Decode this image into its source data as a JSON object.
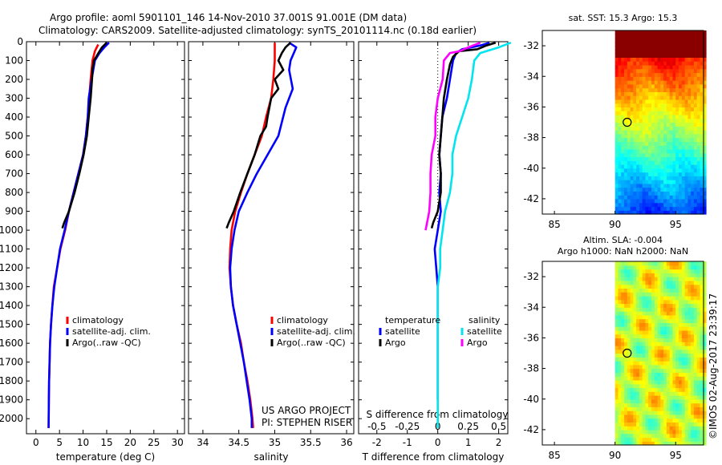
{
  "title": {
    "line1": "Argo profile: aoml 5901101_146 14-Nov-2010 37.001S 91.001E (DM data)",
    "line2": "Climatology: CARS2009. Satellite-adjusted climatology: synTS_20101114.nc (0.18d earlier)"
  },
  "credits": {
    "project": "US ARGO PROJECT",
    "pi": "PI: STEPHEN RISER",
    "stamp": "©IMOS 02-Aug-2017 23:39:17"
  },
  "colors": {
    "climatology": "#ff0000",
    "satellite": "#0000ff",
    "argo": "#000000",
    "sal_satellite": "#00e5ee",
    "sal_argo": "#ff00ff"
  },
  "chart_data": [
    {
      "type": "line",
      "id": "temperature",
      "xlabel": "temperature (deg C)",
      "ylabel": "",
      "xlim": [
        -2,
        31.5
      ],
      "ylim": [
        2080,
        0
      ],
      "xticks": [
        "0",
        "5",
        "10",
        "15",
        "20",
        "25",
        "30"
      ],
      "yticks": [
        "0",
        "100",
        "200",
        "300",
        "400",
        "500",
        "600",
        "700",
        "800",
        "900",
        "1000",
        "1100",
        "1200",
        "1300",
        "1400",
        "1500",
        "1600",
        "1700",
        "1800",
        "1900",
        "2000"
      ],
      "legend": [
        "climatology",
        "satellite-adj. clim.",
        "Argo(..raw -QC)"
      ],
      "legend_position": "lower-center",
      "series": [
        {
          "name": "climatology",
          "color": "#ff0000",
          "points": [
            [
              13.2,
              15
            ],
            [
              12.5,
              50
            ],
            [
              12.0,
              100
            ],
            [
              11.6,
              200
            ],
            [
              11.3,
              300
            ],
            [
              11.0,
              400
            ],
            [
              10.6,
              500
            ],
            [
              10.0,
              600
            ],
            [
              9.0,
              700
            ],
            [
              8.0,
              800
            ],
            [
              7.0,
              900
            ],
            [
              6.2,
              1000
            ],
            [
              5.2,
              1100
            ],
            [
              4.5,
              1200
            ],
            [
              3.8,
              1300
            ],
            [
              3.5,
              1400
            ],
            [
              3.2,
              1500
            ],
            [
              3.0,
              1600
            ],
            [
              2.9,
              1700
            ],
            [
              2.8,
              1800
            ],
            [
              2.75,
              1900
            ],
            [
              2.7,
              2050
            ]
          ]
        },
        {
          "name": "satellite-adj. clim.",
          "color": "#0000ff",
          "points": [
            [
              15.5,
              5
            ],
            [
              14.5,
              30
            ],
            [
              13.5,
              60
            ],
            [
              12.5,
              100
            ],
            [
              11.8,
              200
            ],
            [
              11.2,
              300
            ],
            [
              11.0,
              400
            ],
            [
              10.6,
              500
            ],
            [
              10.0,
              600
            ],
            [
              9.0,
              700
            ],
            [
              8.0,
              800
            ],
            [
              7.0,
              900
            ],
            [
              6.1,
              1000
            ],
            [
              5.1,
              1100
            ],
            [
              4.5,
              1200
            ],
            [
              3.9,
              1300
            ],
            [
              3.5,
              1400
            ],
            [
              3.2,
              1500
            ],
            [
              3.0,
              1600
            ],
            [
              2.9,
              1700
            ],
            [
              2.8,
              1800
            ],
            [
              2.75,
              1900
            ],
            [
              2.7,
              2050
            ]
          ]
        },
        {
          "name": "Argo(..raw -QC)",
          "color": "#000000",
          "points": [
            [
              15.0,
              5
            ],
            [
              14.0,
              30
            ],
            [
              13.5,
              50
            ],
            [
              12.8,
              80
            ],
            [
              12.3,
              100
            ],
            [
              12.0,
              150
            ],
            [
              11.9,
              200
            ],
            [
              11.6,
              300
            ],
            [
              11.2,
              400
            ],
            [
              10.8,
              500
            ],
            [
              10.1,
              600
            ],
            [
              9.2,
              700
            ],
            [
              8.2,
              800
            ],
            [
              7.0,
              900
            ],
            [
              6.0,
              960
            ],
            [
              5.6,
              990
            ]
          ]
        }
      ]
    },
    {
      "type": "line",
      "id": "salinity",
      "xlabel": "salinity",
      "ylabel": "",
      "xlim": [
        33.8,
        36.1
      ],
      "ylim": [
        2080,
        0
      ],
      "xticks": [
        "34",
        "34.5",
        "35",
        "35.5",
        "36"
      ],
      "legend": [
        "climatology",
        "satellite-adj. clim.",
        "Argo(..raw -QC)"
      ],
      "legend_position": "lower-center",
      "series": [
        {
          "name": "climatology",
          "color": "#ff0000",
          "points": [
            [
              35.0,
              5
            ],
            [
              35.0,
              100
            ],
            [
              34.98,
              200
            ],
            [
              34.95,
              300
            ],
            [
              34.88,
              400
            ],
            [
              34.82,
              500
            ],
            [
              34.72,
              600
            ],
            [
              34.62,
              700
            ],
            [
              34.53,
              800
            ],
            [
              34.45,
              900
            ],
            [
              34.4,
              1000
            ],
            [
              34.38,
              1100
            ],
            [
              34.37,
              1200
            ],
            [
              34.39,
              1300
            ],
            [
              34.42,
              1400
            ],
            [
              34.47,
              1500
            ],
            [
              34.53,
              1600
            ],
            [
              34.57,
              1700
            ],
            [
              34.62,
              1800
            ],
            [
              34.66,
              1900
            ],
            [
              34.69,
              2000
            ],
            [
              34.7,
              2050
            ]
          ]
        },
        {
          "name": "satellite-adj. clim.",
          "color": "#0000ff",
          "points": [
            [
              35.2,
              5
            ],
            [
              35.3,
              30
            ],
            [
              35.22,
              100
            ],
            [
              35.2,
              150
            ],
            [
              35.25,
              250
            ],
            [
              35.15,
              350
            ],
            [
              35.05,
              500
            ],
            [
              34.9,
              600
            ],
            [
              34.75,
              700
            ],
            [
              34.62,
              800
            ],
            [
              34.5,
              900
            ],
            [
              34.44,
              1000
            ],
            [
              34.4,
              1100
            ],
            [
              34.38,
              1200
            ],
            [
              34.39,
              1300
            ],
            [
              34.42,
              1400
            ],
            [
              34.47,
              1500
            ],
            [
              34.52,
              1600
            ],
            [
              34.57,
              1700
            ],
            [
              34.61,
              1800
            ],
            [
              34.65,
              1900
            ],
            [
              34.68,
              2000
            ],
            [
              34.68,
              2050
            ]
          ]
        },
        {
          "name": "Argo(..raw -QC)",
          "color": "#000000",
          "points": [
            [
              35.22,
              5
            ],
            [
              35.15,
              30
            ],
            [
              35.1,
              60
            ],
            [
              35.05,
              100
            ],
            [
              35.12,
              150
            ],
            [
              35.0,
              200
            ],
            [
              35.05,
              250
            ],
            [
              34.95,
              300
            ],
            [
              34.9,
              400
            ],
            [
              34.88,
              450
            ],
            [
              34.8,
              500
            ],
            [
              34.72,
              600
            ],
            [
              34.62,
              700
            ],
            [
              34.52,
              800
            ],
            [
              34.43,
              900
            ],
            [
              34.36,
              960
            ],
            [
              34.33,
              990
            ]
          ]
        }
      ]
    },
    {
      "type": "line",
      "id": "difference",
      "xlabel": "T difference from climatology",
      "xlabel2": "S difference from climatology",
      "xlim": [
        -2.6,
        2.3
      ],
      "ylim": [
        2080,
        0
      ],
      "xticks": [
        "-2",
        "-1",
        "0",
        "1",
        "2"
      ],
      "xticks2": [
        "-0.5",
        "-0.25",
        "0",
        "0.25",
        "0.5"
      ],
      "legend_titles": [
        "temperature",
        "salinity"
      ],
      "legend": [
        "satellite",
        "Argo",
        "satellite",
        "Argo"
      ],
      "legend_position": "lower-center",
      "series": [
        {
          "name": "satellite",
          "quantity": "temperature",
          "color": "#0000ff",
          "points": [
            [
              1.7,
              5
            ],
            [
              1.4,
              20
            ],
            [
              0.8,
              40
            ],
            [
              0.6,
              60
            ],
            [
              0.5,
              100
            ],
            [
              0.4,
              200
            ],
            [
              0.3,
              300
            ],
            [
              0.15,
              400
            ],
            [
              0.1,
              500
            ],
            [
              0.05,
              600
            ],
            [
              0.1,
              700
            ],
            [
              0.05,
              800
            ],
            [
              0.1,
              900
            ],
            [
              0.0,
              1000
            ],
            [
              -0.1,
              1100
            ],
            [
              -0.05,
              1200
            ],
            [
              0.0,
              1300
            ],
            [
              0.0,
              1500
            ],
            [
              0.0,
              1700
            ],
            [
              0.0,
              1900
            ]
          ]
        },
        {
          "name": "Argo",
          "quantity": "temperature",
          "color": "#000000",
          "points": [
            [
              1.9,
              5
            ],
            [
              1.6,
              20
            ],
            [
              1.3,
              40
            ],
            [
              0.7,
              50
            ],
            [
              0.5,
              80
            ],
            [
              0.4,
              120
            ],
            [
              0.3,
              200
            ],
            [
              0.2,
              300
            ],
            [
              0.15,
              400
            ],
            [
              0.1,
              500
            ],
            [
              0.05,
              600
            ],
            [
              0.1,
              700
            ],
            [
              0.1,
              800
            ],
            [
              0.0,
              900
            ],
            [
              -0.15,
              960
            ],
            [
              -0.2,
              990
            ]
          ]
        },
        {
          "name": "satellite",
          "quantity": "salinity",
          "color": "#00e5ee",
          "points": [
            [
              0.6,
              5
            ],
            [
              0.5,
              30
            ],
            [
              0.35,
              60
            ],
            [
              0.3,
              100
            ],
            [
              0.28,
              200
            ],
            [
              0.25,
              300
            ],
            [
              0.2,
              400
            ],
            [
              0.15,
              500
            ],
            [
              0.12,
              600
            ],
            [
              0.12,
              700
            ],
            [
              0.1,
              800
            ],
            [
              0.06,
              900
            ],
            [
              0.04,
              1000
            ],
            [
              0.02,
              1100
            ],
            [
              0.02,
              1200
            ],
            [
              0.0,
              1300
            ],
            [
              0.0,
              1500
            ],
            [
              0.0,
              1700
            ],
            [
              0.0,
              2050
            ]
          ]
        },
        {
          "name": "Argo",
          "quantity": "salinity",
          "color": "#ff00ff",
          "points": [
            [
              0.35,
              5
            ],
            [
              0.25,
              30
            ],
            [
              0.18,
              50
            ],
            [
              0.1,
              60
            ],
            [
              0.05,
              100
            ],
            [
              0.04,
              200
            ],
            [
              0.0,
              300
            ],
            [
              -0.02,
              400
            ],
            [
              -0.02,
              500
            ],
            [
              -0.05,
              600
            ],
            [
              -0.06,
              700
            ],
            [
              -0.06,
              800
            ],
            [
              -0.07,
              900
            ],
            [
              -0.1,
              1000
            ]
          ]
        }
      ]
    },
    {
      "type": "heatmap",
      "id": "sst_map",
      "title": "sat. SST: 15.3 Argo: 15.3",
      "xlim": [
        84,
        97.3
      ],
      "ylim": [
        -43,
        -31
      ],
      "xticks": [
        "85",
        "90",
        "95"
      ],
      "yticks": [
        "-32",
        "-34",
        "-36",
        "-38",
        "-40",
        "-42"
      ],
      "data_lon_range": [
        90,
        97.3
      ],
      "marker": {
        "lon": 91.0,
        "lat": -37.0
      },
      "colorscale": "jet"
    },
    {
      "type": "heatmap",
      "id": "sla_map",
      "title": "Altim. SLA: -0.004",
      "title2": "Argo h1000: NaN h2000: NaN",
      "xlim": [
        84,
        97.3
      ],
      "ylim": [
        -43,
        -31
      ],
      "xticks": [
        "85",
        "90",
        "95"
      ],
      "yticks": [
        "-32",
        "-34",
        "-36",
        "-38",
        "-40",
        "-42"
      ],
      "data_lon_range": [
        90,
        97.3
      ],
      "marker": {
        "lon": 91.0,
        "lat": -37.0
      },
      "colorscale": "jet"
    }
  ]
}
